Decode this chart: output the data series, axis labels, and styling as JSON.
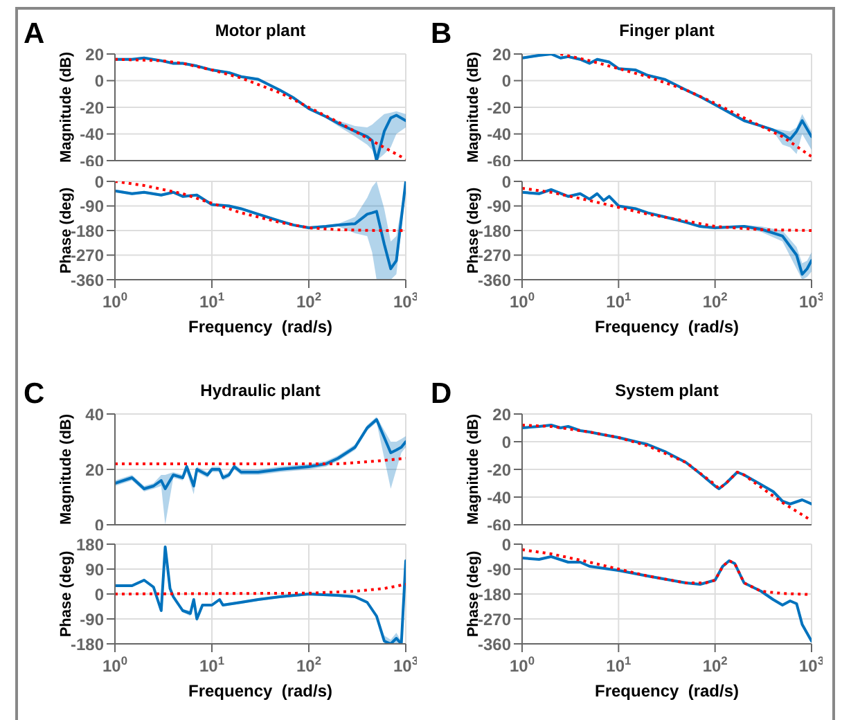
{
  "chart_data": [
    {
      "type": "line",
      "title": "Motor plant",
      "annotations": [
        "A"
      ],
      "ylabel": "Magnitude (dB)",
      "xlim": [
        1,
        1000
      ],
      "xticks": [
        {
          "value": 1,
          "label": null
        },
        {
          "value": 10,
          "label": null
        },
        {
          "value": 100,
          "label": null
        },
        {
          "value": 1000,
          "label": null
        }
      ],
      "ylim": [
        -60,
        20
      ],
      "yticks": [
        -60,
        -40,
        -20,
        0,
        20
      ],
      "log": "x",
      "grid": true,
      "tick_labels": "y",
      "series": [
        {
          "color": "#0072bd",
          "line_style": "solid",
          "x": [
            1,
            1.5,
            2,
            3,
            4,
            5,
            7,
            10,
            15,
            20,
            30,
            50,
            70,
            100,
            150,
            200,
            300,
            400,
            450,
            500,
            600,
            700,
            800,
            1000
          ],
          "values": [
            16,
            16,
            17,
            15,
            13,
            13,
            11,
            8,
            6,
            3,
            1,
            -7,
            -13,
            -21,
            -27,
            -32,
            -38,
            -42,
            -45,
            -60,
            -38,
            -28,
            -26,
            -30
          ],
          "lower": [
            15,
            15,
            16,
            14,
            12,
            12,
            10,
            7,
            5,
            2,
            0,
            -8,
            -14,
            -22,
            -28,
            -34,
            -42,
            -48,
            -52,
            -60,
            -55,
            -50,
            -40,
            -35
          ],
          "upper": [
            17,
            17,
            18,
            16,
            14,
            14,
            12,
            9,
            7,
            4,
            2,
            -6,
            -12,
            -20,
            -26,
            -30,
            -34,
            -35,
            -33,
            -30,
            -25,
            -24,
            -23,
            -25
          ]
        },
        {
          "color": "#ff0000",
          "line_style": "dotted",
          "x": [
            1,
            3,
            5,
            10,
            20,
            50,
            100,
            200,
            500,
            1000
          ],
          "values": [
            16,
            15,
            13,
            8,
            2,
            -9,
            -20,
            -31,
            -47,
            -59
          ]
        }
      ]
    },
    {
      "type": "line",
      "ylabel": "Phase (deg)",
      "xlabel": "Frequency  (rad/s)",
      "xlim": [
        1,
        1000
      ],
      "xticks": [
        {
          "value": 1,
          "label": "10$^{0}$"
        },
        {
          "value": 10,
          "label": "10$^{1}$"
        },
        {
          "value": 100,
          "label": "10$^{2}$"
        },
        {
          "value": 1000,
          "label": "10$^{3}$"
        }
      ],
      "ylim": [
        -360,
        0
      ],
      "yticks": [
        -360,
        -270,
        -180,
        -90,
        0
      ],
      "log": "x",
      "grid": true,
      "series": [
        {
          "color": "#0072bd",
          "line_style": "solid",
          "x": [
            1,
            1.5,
            2,
            3,
            4,
            5,
            7,
            10,
            15,
            20,
            30,
            50,
            70,
            100,
            150,
            200,
            300,
            400,
            450,
            500,
            600,
            700,
            800,
            1000
          ],
          "values": [
            -35,
            -45,
            -40,
            -50,
            -40,
            -55,
            -50,
            -85,
            -90,
            -100,
            -120,
            -145,
            -160,
            -170,
            -165,
            -160,
            -155,
            -120,
            -115,
            -110,
            -230,
            -320,
            -290,
            0
          ],
          "lower": [
            -40,
            -50,
            -45,
            -55,
            -45,
            -60,
            -55,
            -90,
            -95,
            -105,
            -125,
            -150,
            -165,
            -175,
            -170,
            -165,
            -190,
            -200,
            -260,
            -360,
            -360,
            -360,
            -340,
            -30
          ],
          "upper": [
            -30,
            -40,
            -35,
            -45,
            -35,
            -50,
            -45,
            -80,
            -85,
            -95,
            -115,
            -140,
            -155,
            -165,
            -160,
            -155,
            -130,
            -60,
            -20,
            0,
            -100,
            -220,
            -200,
            0
          ]
        },
        {
          "color": "#ff0000",
          "line_style": "dotted",
          "x": [
            1,
            2,
            5,
            10,
            20,
            50,
            100,
            200,
            500,
            1000
          ],
          "values": [
            0,
            -15,
            -45,
            -80,
            -115,
            -150,
            -170,
            -177,
            -180,
            -180
          ]
        }
      ]
    },
    {
      "type": "line",
      "title": "Finger plant",
      "annotations": [
        "B"
      ],
      "ylabel": "Magnitude (dB)",
      "xlim": [
        1,
        1000
      ],
      "xticks": [
        {
          "value": 1,
          "label": null
        },
        {
          "value": 10,
          "label": null
        },
        {
          "value": 100,
          "label": null
        },
        {
          "value": 1000,
          "label": null
        }
      ],
      "ylim": [
        -60,
        20
      ],
      "yticks": [
        -60,
        -40,
        -20,
        0,
        20
      ],
      "log": "x",
      "grid": true,
      "tick_labels": "y",
      "series": [
        {
          "color": "#0072bd",
          "line_style": "solid",
          "x": [
            1,
            1.5,
            2,
            2.5,
            3,
            4,
            5,
            6,
            8,
            10,
            15,
            20,
            30,
            50,
            70,
            100,
            150,
            200,
            300,
            400,
            500,
            600,
            700,
            800,
            1000
          ],
          "values": [
            17,
            19,
            20,
            17,
            18,
            16,
            13,
            16,
            14,
            9,
            8,
            4,
            1,
            -7,
            -12,
            -18,
            -25,
            -30,
            -34,
            -37,
            -40,
            -44,
            -38,
            -30,
            -42
          ],
          "lower": [
            16,
            18,
            19,
            16,
            17,
            15,
            12,
            15,
            13,
            8,
            7,
            3,
            0,
            -8,
            -13,
            -19,
            -26,
            -31,
            -35,
            -38,
            -48,
            -50,
            -55,
            -40,
            -52
          ],
          "upper": [
            18,
            20,
            20,
            18,
            19,
            17,
            14,
            17,
            15,
            10,
            9,
            5,
            2,
            -6,
            -11,
            -17,
            -24,
            -29,
            -33,
            -36,
            -37,
            -38,
            -35,
            -25,
            -38
          ]
        },
        {
          "color": "#ff0000",
          "line_style": "dotted",
          "x": [
            2.5,
            5,
            10,
            20,
            50,
            100,
            200,
            500,
            1000
          ],
          "values": [
            20,
            15,
            9,
            3,
            -7,
            -17,
            -28,
            -42,
            -57
          ]
        }
      ]
    },
    {
      "type": "line",
      "ylabel": "Phase (deg)",
      "xlabel": "Frequency  (rad/s)",
      "xlim": [
        1,
        1000
      ],
      "xticks": [
        {
          "value": 1,
          "label": "10$^{0}$"
        },
        {
          "value": 10,
          "label": "10$^{1}$"
        },
        {
          "value": 100,
          "label": "10$^{2}$"
        },
        {
          "value": 1000,
          "label": "10$^{3}$"
        }
      ],
      "ylim": [
        -360,
        0
      ],
      "yticks": [
        -360,
        -270,
        -180,
        -90,
        0
      ],
      "log": "x",
      "grid": true,
      "series": [
        {
          "color": "#0072bd",
          "line_style": "solid",
          "x": [
            1,
            1.5,
            2,
            3,
            4,
            5,
            6,
            7,
            8,
            10,
            15,
            20,
            30,
            50,
            70,
            100,
            200,
            300,
            500,
            700,
            800,
            900,
            1000
          ],
          "values": [
            -40,
            -45,
            -30,
            -55,
            -45,
            -65,
            -45,
            -70,
            -55,
            -90,
            -100,
            -115,
            -130,
            -150,
            -165,
            -170,
            -165,
            -175,
            -200,
            -270,
            -340,
            -320,
            -290
          ],
          "lower": [
            -45,
            -50,
            -35,
            -60,
            -50,
            -70,
            -50,
            -75,
            -60,
            -95,
            -105,
            -120,
            -135,
            -155,
            -170,
            -175,
            -170,
            -185,
            -220,
            -320,
            -360,
            -350,
            -330
          ],
          "upper": [
            -35,
            -40,
            -25,
            -50,
            -40,
            -60,
            -40,
            -65,
            -50,
            -85,
            -95,
            -110,
            -125,
            -145,
            -160,
            -165,
            -160,
            -165,
            -180,
            -240,
            -300,
            -290,
            -260
          ]
        },
        {
          "color": "#ff0000",
          "line_style": "dotted",
          "x": [
            1,
            2,
            5,
            10,
            20,
            50,
            100,
            300,
            1000
          ],
          "values": [
            -25,
            -40,
            -70,
            -95,
            -120,
            -145,
            -165,
            -177,
            -180
          ]
        }
      ]
    },
    {
      "type": "line",
      "title": "Hydraulic plant",
      "annotations": [
        "C"
      ],
      "ylabel": "Magnitude (dB)",
      "xlim": [
        1,
        1000
      ],
      "xticks": [
        {
          "value": 1,
          "label": null
        },
        {
          "value": 10,
          "label": null
        },
        {
          "value": 100,
          "label": null
        },
        {
          "value": 1000,
          "label": null
        }
      ],
      "ylim": [
        0,
        40
      ],
      "yticks": [
        0,
        20,
        40
      ],
      "log": "x",
      "grid": true,
      "tick_labels": "y",
      "series": [
        {
          "color": "#0072bd",
          "line_style": "solid",
          "x": [
            1,
            1.5,
            2,
            2.5,
            3,
            3.3,
            4,
            5,
            5.5,
            6.5,
            7,
            9,
            10,
            12,
            13,
            15,
            17,
            20,
            30,
            50,
            100,
            150,
            200,
            300,
            400,
            500,
            700,
            800,
            900,
            1000
          ],
          "values": [
            15,
            17,
            13,
            14,
            16,
            13,
            18,
            17,
            21,
            14,
            20,
            18,
            20,
            20,
            17,
            18,
            21,
            19,
            19,
            20,
            21,
            22,
            24,
            28,
            35,
            38,
            26,
            27,
            28,
            30
          ],
          "lower": [
            14,
            16,
            12,
            13,
            14,
            0,
            17,
            16,
            19,
            11,
            19,
            17,
            19,
            19,
            16,
            17,
            20,
            18,
            18,
            19,
            20,
            21,
            23,
            27,
            34,
            37,
            13,
            20,
            26,
            28
          ],
          "upper": [
            16,
            18,
            14,
            15,
            18,
            18,
            19,
            18,
            22,
            16,
            21,
            19,
            21,
            21,
            18,
            19,
            22,
            20,
            20,
            21,
            22,
            23,
            25,
            29,
            36,
            39,
            30,
            30,
            31,
            32
          ]
        },
        {
          "color": "#ff0000",
          "line_style": "dotted",
          "x": [
            1,
            10,
            100,
            200,
            500,
            1000
          ],
          "values": [
            22,
            22,
            22,
            22,
            23,
            24
          ]
        }
      ]
    },
    {
      "type": "line",
      "ylabel": "Phase (deg)",
      "xlabel": "Frequency  (rad/s)",
      "xlim": [
        1,
        1000
      ],
      "xticks": [
        {
          "value": 1,
          "label": "10$^{0}$"
        },
        {
          "value": 10,
          "label": "10$^{1}$"
        },
        {
          "value": 100,
          "label": "10$^{2}$"
        },
        {
          "value": 1000,
          "label": "10$^{3}$"
        }
      ],
      "ylim": [
        -180,
        180
      ],
      "yticks": [
        -180,
        -90,
        0,
        90,
        180
      ],
      "log": "x",
      "grid": true,
      "series": [
        {
          "color": "#0072bd",
          "line_style": "solid",
          "x": [
            1,
            1.5,
            2,
            2.5,
            3,
            3.3,
            3.7,
            4,
            5,
            6,
            6.5,
            7,
            8,
            10,
            12,
            13,
            20,
            30,
            50,
            100,
            200,
            300,
            400,
            500,
            600,
            700,
            800,
            900,
            1000
          ],
          "values": [
            30,
            30,
            50,
            25,
            -60,
            170,
            20,
            -10,
            -60,
            -70,
            -20,
            -90,
            -40,
            -40,
            -20,
            -40,
            -30,
            -20,
            -10,
            0,
            -5,
            -10,
            -30,
            -80,
            -170,
            -180,
            -160,
            -180,
            120
          ],
          "lower": [
            25,
            25,
            45,
            20,
            -65,
            150,
            15,
            -15,
            -65,
            -80,
            -25,
            -100,
            -45,
            -45,
            -25,
            -45,
            -35,
            -25,
            -15,
            -5,
            -10,
            -15,
            -35,
            -85,
            -180,
            -180,
            -180,
            -180,
            110
          ],
          "upper": [
            35,
            35,
            55,
            30,
            -55,
            180,
            25,
            -5,
            -55,
            -60,
            -15,
            -80,
            -35,
            -35,
            -15,
            -35,
            -25,
            -15,
            -5,
            5,
            0,
            -5,
            -25,
            -75,
            -150,
            -165,
            -140,
            -170,
            130
          ]
        },
        {
          "color": "#ff0000",
          "line_style": "dotted",
          "x": [
            1,
            100,
            300,
            600,
            1000
          ],
          "values": [
            0,
            3,
            10,
            20,
            35
          ]
        }
      ]
    },
    {
      "type": "line",
      "title": "System plant",
      "annotations": [
        "D"
      ],
      "ylabel": "Magnitude (dB)",
      "xlim": [
        1,
        1000
      ],
      "xticks": [
        {
          "value": 1,
          "label": null
        },
        {
          "value": 10,
          "label": null
        },
        {
          "value": 100,
          "label": null
        },
        {
          "value": 1000,
          "label": null
        }
      ],
      "ylim": [
        -60,
        20
      ],
      "yticks": [
        -60,
        -40,
        -20,
        0,
        20
      ],
      "log": "x",
      "grid": true,
      "tick_labels": "y",
      "series": [
        {
          "color": "#0072bd",
          "line_style": "solid",
          "x": [
            1,
            1.5,
            2,
            2.5,
            3,
            4,
            5,
            7,
            10,
            20,
            30,
            50,
            70,
            100,
            110,
            130,
            170,
            200,
            300,
            400,
            500,
            600,
            800,
            1000
          ],
          "values": [
            10,
            11,
            12,
            10,
            11,
            8,
            7,
            5,
            3,
            -2,
            -7,
            -15,
            -23,
            -32,
            -34,
            -30,
            -22,
            -24,
            -31,
            -36,
            -43,
            -45,
            -42,
            -45
          ]
        },
        {
          "color": "#ff0000",
          "line_style": "dotted",
          "x": [
            1,
            2,
            5,
            10,
            20,
            50,
            100,
            110,
            130,
            170,
            200,
            300,
            500,
            1000
          ],
          "values": [
            12,
            11,
            7,
            3,
            -3,
            -15,
            -31,
            -34,
            -30,
            -22,
            -24,
            -33,
            -44,
            -57
          ]
        }
      ]
    },
    {
      "type": "line",
      "ylabel": "Phase (deg)",
      "xlabel": "Frequency  (rad/s)",
      "xlim": [
        1,
        1000
      ],
      "xticks": [
        {
          "value": 1,
          "label": "10$^{0}$"
        },
        {
          "value": 10,
          "label": "10$^{1}$"
        },
        {
          "value": 100,
          "label": "10$^{2}$"
        },
        {
          "value": 1000,
          "label": "10$^{3}$"
        }
      ],
      "ylim": [
        -360,
        0
      ],
      "yticks": [
        -360,
        -270,
        -180,
        -90,
        0
      ],
      "log": "x",
      "grid": true,
      "series": [
        {
          "color": "#0072bd",
          "line_style": "solid",
          "x": [
            1,
            1.5,
            2,
            3,
            4,
            5,
            10,
            20,
            50,
            70,
            100,
            120,
            140,
            160,
            200,
            300,
            400,
            500,
            600,
            700,
            800,
            1000
          ],
          "values": [
            -50,
            -55,
            -45,
            -65,
            -65,
            -80,
            -95,
            -115,
            -140,
            -145,
            -130,
            -80,
            -60,
            -70,
            -140,
            -170,
            -200,
            -220,
            -205,
            -215,
            -290,
            -350
          ]
        },
        {
          "color": "#ff0000",
          "line_style": "dotted",
          "x": [
            1,
            2,
            5,
            10,
            20,
            50,
            80,
            100,
            120,
            140,
            160,
            200,
            300,
            500,
            1000
          ],
          "values": [
            -20,
            -35,
            -65,
            -90,
            -115,
            -140,
            -140,
            -130,
            -80,
            -60,
            -70,
            -140,
            -170,
            -178,
            -182
          ]
        }
      ]
    }
  ]
}
